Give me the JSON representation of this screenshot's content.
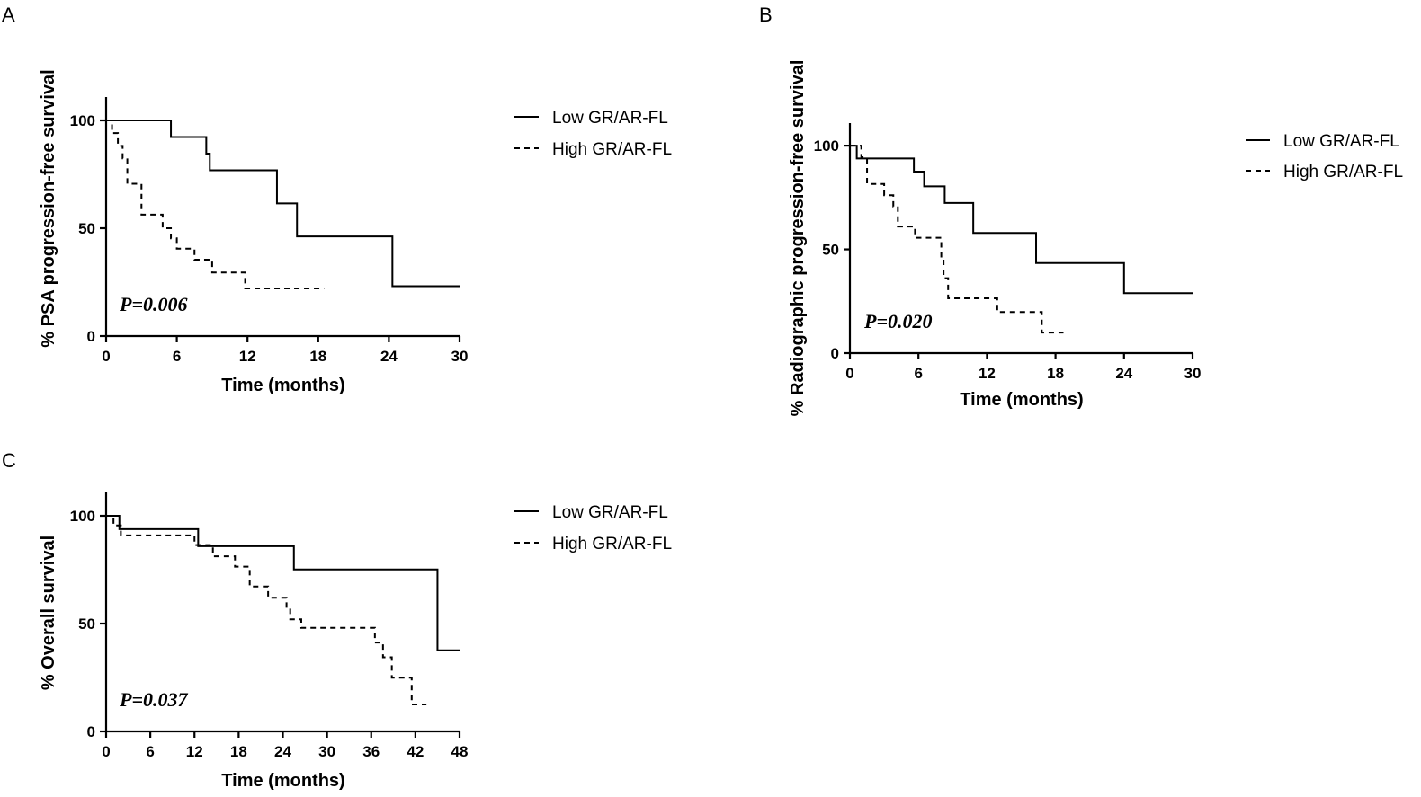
{
  "chart_data": [
    {
      "type": "line",
      "panel": "A",
      "title": "",
      "xlabel": "Time (months)",
      "ylabel": "% PSA progression-free survival",
      "xlim": [
        0,
        30
      ],
      "ylim": [
        0,
        110
      ],
      "xticks": [
        "0",
        "6",
        "12",
        "18",
        "24",
        "30"
      ],
      "yticks": [
        "0",
        "50",
        "100"
      ],
      "pvalue": "P=0.006",
      "legend_position": "top-right",
      "series": [
        {
          "name": "Low GR/AR-FL",
          "style": "solid",
          "x": [
            0,
            5.5,
            8.5,
            8.8,
            14.5,
            16.2,
            24.3,
            30
          ],
          "y": [
            100,
            92.3,
            84.6,
            76.9,
            61.5,
            46.2,
            23.1,
            23.1
          ]
        },
        {
          "name": "High GR/AR-FL",
          "style": "dashed",
          "x": [
            0,
            0.5,
            1.0,
            1.4,
            1.8,
            3.0,
            4.8,
            5.5,
            6.0,
            7.5,
            9.0,
            11.8,
            18.5
          ],
          "y": [
            100,
            94.1,
            88.2,
            82.4,
            70.6,
            56.3,
            50.0,
            45.3,
            40.5,
            35.4,
            29.5,
            22.1,
            22.1
          ]
        }
      ]
    },
    {
      "type": "line",
      "panel": "B",
      "title": "",
      "xlabel": "Time (months)",
      "ylabel": "% Radiographic progression-free survival",
      "xlim": [
        0,
        30
      ],
      "ylim": [
        0,
        110
      ],
      "xticks": [
        "0",
        "6",
        "12",
        "18",
        "24",
        "30"
      ],
      "yticks": [
        "0",
        "50",
        "100"
      ],
      "pvalue": "P=0.020",
      "legend_position": "top-right",
      "series": [
        {
          "name": "Low GR/AR-FL",
          "style": "solid",
          "x": [
            0,
            0.6,
            5.6,
            6.5,
            8.3,
            10.8,
            16.3,
            24.0,
            30
          ],
          "y": [
            100,
            93.8,
            87.5,
            80.4,
            72.4,
            57.9,
            43.4,
            28.9,
            28.9
          ]
        },
        {
          "name": "High GR/AR-FL",
          "style": "dashed",
          "x": [
            0,
            1.0,
            1.5,
            3.0,
            3.8,
            4.2,
            5.7,
            8.0,
            8.2,
            8.6,
            12.9,
            16.8,
            18.7
          ],
          "y": [
            100,
            94.4,
            81.5,
            76.1,
            70.7,
            61.0,
            55.6,
            45.8,
            36.1,
            26.4,
            19.8,
            9.9,
            9.9
          ]
        }
      ]
    },
    {
      "type": "line",
      "panel": "C",
      "title": "",
      "xlabel": "Time (months)",
      "ylabel": "% Overall survival",
      "xlim": [
        0,
        48
      ],
      "ylim": [
        0,
        110
      ],
      "xticks": [
        "0",
        "6",
        "12",
        "18",
        "24",
        "30",
        "36",
        "42",
        "48"
      ],
      "yticks": [
        "0",
        "50",
        "100"
      ],
      "pvalue": "P=0.037",
      "legend_position": "top-right",
      "series": [
        {
          "name": "Low GR/AR-FL",
          "style": "solid",
          "x": [
            0,
            1.8,
            12.5,
            25.5,
            45.0,
            48
          ],
          "y": [
            100,
            93.8,
            85.9,
            75.1,
            37.6,
            37.6
          ]
        },
        {
          "name": "High GR/AR-FL",
          "style": "dashed",
          "x": [
            0,
            1.0,
            2.0,
            12.0,
            14.5,
            17.5,
            19.5,
            22.0,
            24.5,
            25.0,
            26.5,
            36.5,
            37.6,
            38.8,
            41.5,
            43.5
          ],
          "y": [
            100,
            95.5,
            90.9,
            86.4,
            81.2,
            76.4,
            67.2,
            62.0,
            57.3,
            52.0,
            48.0,
            41.2,
            34.4,
            24.9,
            12.5,
            12.5
          ]
        }
      ]
    }
  ]
}
